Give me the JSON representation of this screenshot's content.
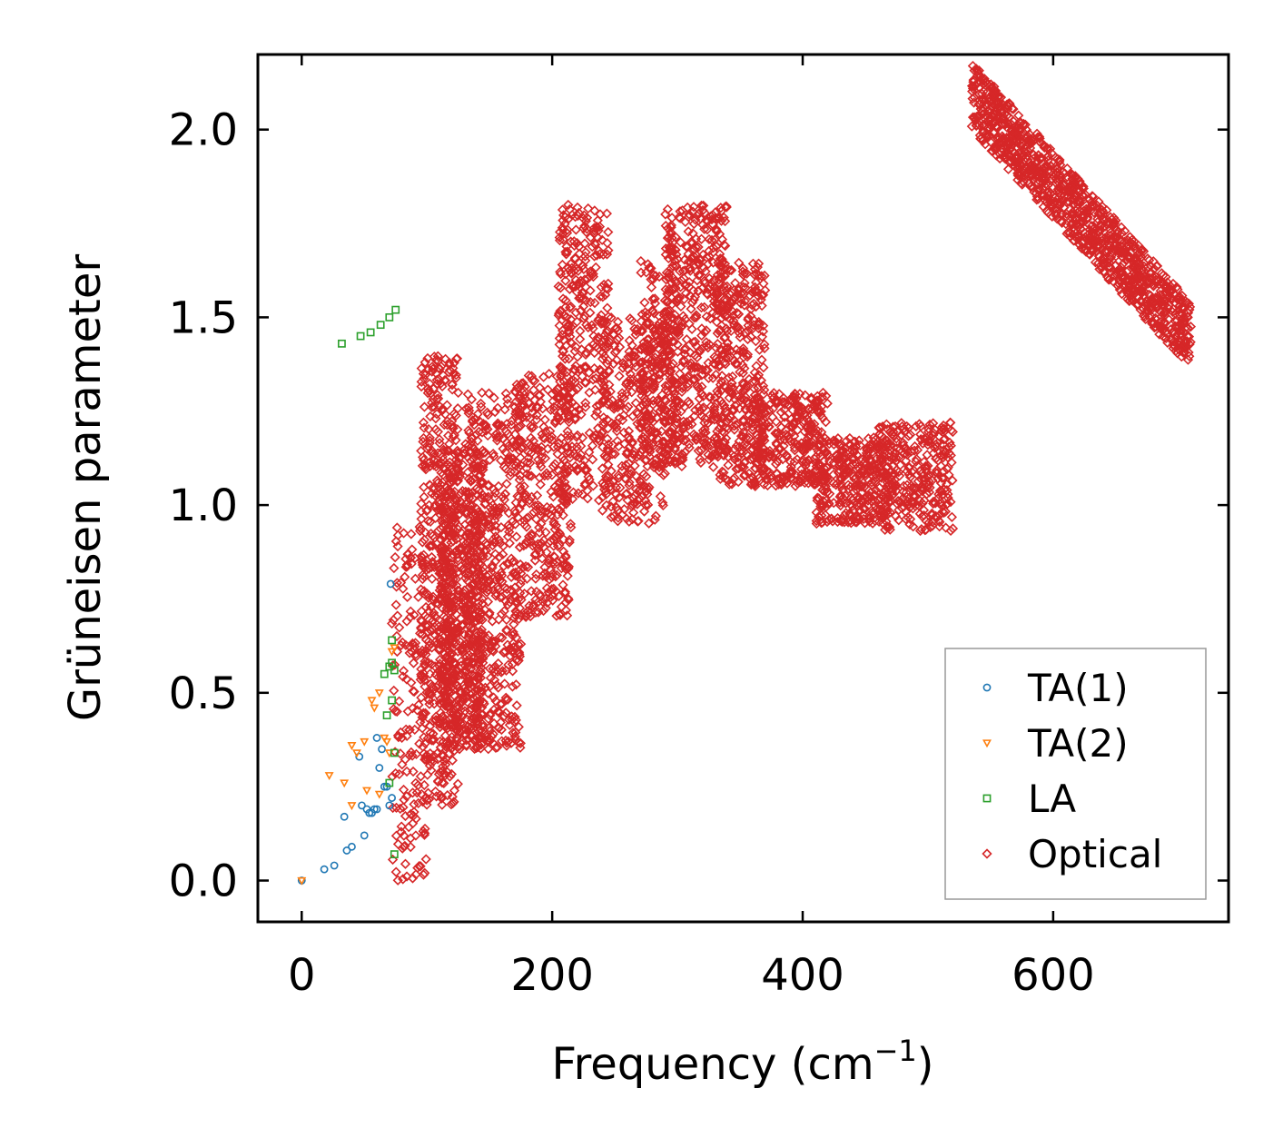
{
  "chart_data": {
    "type": "scatter",
    "title": "",
    "xlabel_main": "Frequency (cm",
    "xlabel_sup": "−1",
    "xlabel_close": ")",
    "ylabel": "Grüneisen parameter",
    "xlim": [
      -35,
      740
    ],
    "ylim": [
      -0.11,
      2.2
    ],
    "xticks": [
      0,
      200,
      400,
      600
    ],
    "xtick_labels": [
      "0",
      "200",
      "400",
      "600"
    ],
    "yticks": [
      0.0,
      0.5,
      1.0,
      1.5,
      2.0
    ],
    "ytick_labels": [
      "0.0",
      "0.5",
      "1.0",
      "1.5",
      "2.0"
    ],
    "legend_position": "lower-right",
    "series": [
      {
        "name": "TA(1)",
        "marker": "circle",
        "color": "#1f77b4",
        "points": [
          [
            0,
            0.0
          ],
          [
            18,
            0.03
          ],
          [
            26,
            0.04
          ],
          [
            34,
            0.17
          ],
          [
            36,
            0.08
          ],
          [
            40,
            0.09
          ],
          [
            46,
            0.33
          ],
          [
            48,
            0.2
          ],
          [
            50,
            0.12
          ],
          [
            52,
            0.19
          ],
          [
            54,
            0.18
          ],
          [
            56,
            0.18
          ],
          [
            58,
            0.19
          ],
          [
            60,
            0.38
          ],
          [
            62,
            0.3
          ],
          [
            64,
            0.35
          ],
          [
            66,
            0.25
          ],
          [
            68,
            0.25
          ],
          [
            70,
            0.2
          ],
          [
            72,
            0.22
          ],
          [
            71,
            0.79
          ],
          [
            60,
            0.19
          ]
        ]
      },
      {
        "name": "TA(2)",
        "marker": "triangle-down",
        "color": "#ff7f0e",
        "points": [
          [
            0,
            0.0
          ],
          [
            22,
            0.28
          ],
          [
            34,
            0.26
          ],
          [
            40,
            0.2
          ],
          [
            40,
            0.36
          ],
          [
            44,
            0.34
          ],
          [
            50,
            0.37
          ],
          [
            52,
            0.24
          ],
          [
            56,
            0.48
          ],
          [
            58,
            0.46
          ],
          [
            62,
            0.5
          ],
          [
            62,
            0.23
          ],
          [
            66,
            0.38
          ],
          [
            68,
            0.37
          ],
          [
            72,
            0.61
          ],
          [
            74,
            0.62
          ],
          [
            70,
            0.34
          ]
        ]
      },
      {
        "name": "LA",
        "marker": "square",
        "color": "#2ca02c",
        "points": [
          [
            32,
            1.43
          ],
          [
            47,
            1.45
          ],
          [
            55,
            1.46
          ],
          [
            63,
            1.48
          ],
          [
            70,
            1.5
          ],
          [
            75,
            1.52
          ],
          [
            66,
            0.55
          ],
          [
            70,
            0.57
          ],
          [
            72,
            0.58
          ],
          [
            74,
            0.56
          ],
          [
            72,
            0.64
          ],
          [
            68,
            0.44
          ],
          [
            72,
            0.48
          ],
          [
            74,
            0.34
          ],
          [
            70,
            0.26
          ],
          [
            74,
            0.07
          ]
        ]
      },
      {
        "name": "Optical",
        "marker": "diamond",
        "color": "#d62728",
        "points": [],
        "clusters": [
          {
            "x": [
              72,
              100
            ],
            "y": [
              0.0,
              0.95
            ],
            "n": 170
          },
          {
            "x": [
              95,
              125
            ],
            "y": [
              0.2,
              1.4
            ],
            "n": 520
          },
          {
            "x": [
              110,
              145
            ],
            "y": [
              0.35,
              1.15
            ],
            "n": 520
          },
          {
            "x": [
              130,
              175
            ],
            "y": [
              0.35,
              1.3
            ],
            "n": 520
          },
          {
            "x": [
              170,
              215
            ],
            "y": [
              0.7,
              1.35
            ],
            "n": 360
          },
          {
            "x": [
              205,
              245
            ],
            "y": [
              1.0,
              1.8
            ],
            "n": 360
          },
          {
            "x": [
              240,
              290
            ],
            "y": [
              0.95,
              1.5
            ],
            "n": 320
          },
          {
            "x": [
              270,
              300
            ],
            "y": [
              1.1,
              1.65
            ],
            "n": 200
          },
          {
            "x": [
              290,
              340
            ],
            "y": [
              1.1,
              1.8
            ],
            "n": 480
          },
          {
            "x": [
              330,
              370
            ],
            "y": [
              1.05,
              1.65
            ],
            "n": 340
          },
          {
            "x": [
              360,
              420
            ],
            "y": [
              1.05,
              1.3
            ],
            "n": 300
          },
          {
            "x": [
              410,
              470
            ],
            "y": [
              0.95,
              1.18
            ],
            "n": 320
          },
          {
            "x": [
              460,
              520
            ],
            "y": [
              0.93,
              1.22
            ],
            "n": 320
          }
        ],
        "bands": [
          {
            "x": [
              535,
              710
            ],
            "y0": 2.09,
            "y1": 1.45,
            "spread": 0.09,
            "n": 1100
          }
        ]
      }
    ]
  }
}
